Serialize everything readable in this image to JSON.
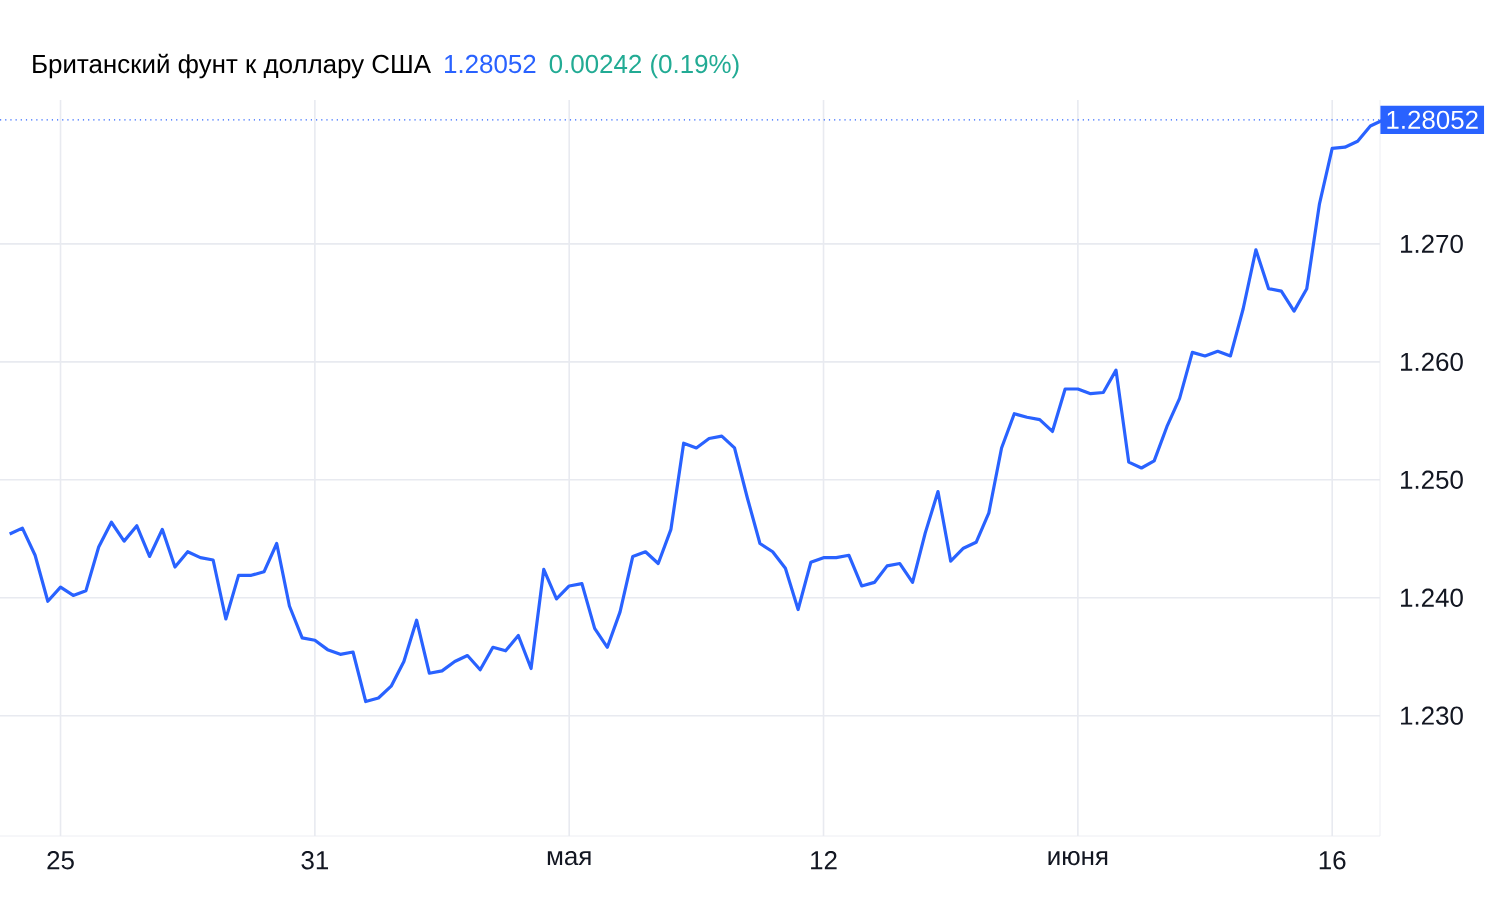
{
  "chart_data": {
    "type": "line",
    "title": "Британский фунт к доллару США",
    "annotations": [
      "1.28052",
      "0.00242 (0.19%)"
    ],
    "categories": [
      null,
      null,
      null,
      null,
      "25",
      null,
      null,
      null,
      null,
      null,
      null,
      null,
      null,
      null,
      null,
      null,
      null,
      null,
      null,
      null,
      null,
      null,
      null,
      null,
      "31",
      null,
      null,
      null,
      null,
      null,
      null,
      null,
      null,
      null,
      null,
      null,
      null,
      null,
      null,
      null,
      null,
      null,
      null,
      null,
      "мая",
      null,
      null,
      null,
      null,
      null,
      null,
      null,
      null,
      null,
      null,
      null,
      null,
      null,
      null,
      null,
      null,
      null,
      null,
      null,
      "12",
      null,
      null,
      null,
      null,
      null,
      null,
      null,
      null,
      null,
      null,
      null,
      null,
      null,
      null,
      null,
      null,
      null,
      null,
      null,
      "июня",
      null,
      null,
      null,
      null,
      null,
      null,
      null,
      null,
      null,
      null,
      null,
      null,
      null,
      null,
      null,
      null,
      null,
      null,
      null,
      "16",
      null,
      null,
      null,
      null
    ],
    "values": [
      1.2454,
      1.2459,
      1.2436,
      1.2397,
      1.2409,
      1.2402,
      1.2406,
      1.2443,
      1.2464,
      1.2448,
      1.2461,
      1.2435,
      1.2458,
      1.2426,
      1.2439,
      1.2434,
      1.2432,
      1.2382,
      1.2419,
      1.2419,
      1.2422,
      1.2446,
      1.2393,
      1.2366,
      1.2364,
      1.2356,
      1.2352,
      1.2354,
      1.2312,
      1.2315,
      1.2325,
      1.2346,
      1.2381,
      1.2336,
      1.2338,
      1.2346,
      1.2351,
      1.2339,
      1.2358,
      1.2355,
      1.2368,
      1.234,
      1.2424,
      1.2399,
      1.241,
      1.2412,
      1.2374,
      1.2358,
      1.2388,
      1.2435,
      1.2439,
      1.2429,
      1.2458,
      1.2531,
      1.2527,
      1.2535,
      1.2537,
      1.2527,
      1.2485,
      1.2446,
      1.2439,
      1.2425,
      1.239,
      1.243,
      1.2434,
      1.2434,
      1.2436,
      1.241,
      1.2413,
      1.2427,
      1.2429,
      1.2413,
      1.2455,
      1.249,
      1.2431,
      1.2442,
      1.2447,
      1.2472,
      1.2527,
      1.2556,
      1.2553,
      1.2551,
      1.2541,
      1.2577,
      1.2577,
      1.2573,
      1.2574,
      1.2593,
      1.2515,
      1.251,
      1.2516,
      1.2545,
      1.2569,
      1.2608,
      1.2605,
      1.2609,
      1.2605,
      1.2645,
      1.2695,
      1.2662,
      1.266,
      1.2643,
      1.2662,
      1.2734,
      1.2781,
      1.2782,
      1.2787,
      1.28,
      1.2805
    ],
    "color": "#2962ff",
    "ylim": [
      1.2198,
      1.2822
    ],
    "yticks": [
      {
        "value": 1.23,
        "label": "1.230"
      },
      {
        "value": 1.24,
        "label": "1.240"
      },
      {
        "value": 1.25,
        "label": "1.250"
      },
      {
        "value": 1.26,
        "label": "1.260"
      },
      {
        "value": 1.27,
        "label": "1.270"
      }
    ],
    "grid": true,
    "ref_lines": [
      {
        "axis": "y",
        "value": 1.28052,
        "label": "1.28052",
        "color": "#2962ff",
        "line_style": "dotted"
      }
    ]
  }
}
